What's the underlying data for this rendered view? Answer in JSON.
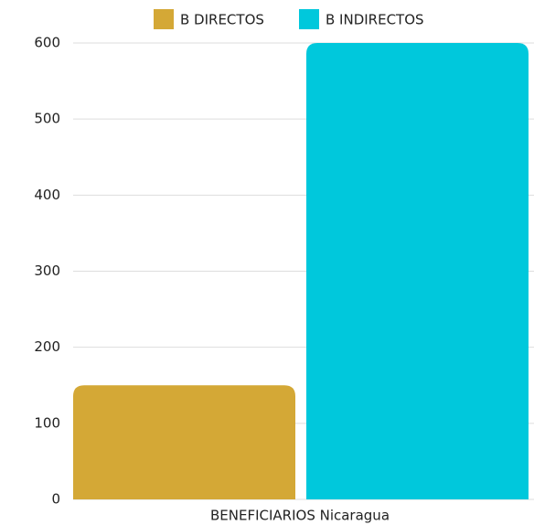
{
  "chart_data": {
    "type": "bar",
    "categories": [
      "BENEFICIARIOS Nicaragua"
    ],
    "series": [
      {
        "name": "B DIRECTOS",
        "color": "#d4a836",
        "values": [
          150
        ]
      },
      {
        "name": "B INDIRECTOS",
        "color": "#00c8dc",
        "values": [
          600
        ]
      }
    ],
    "ylim": [
      0,
      600
    ],
    "yticks": [
      0,
      100,
      200,
      300,
      400,
      500,
      600
    ],
    "grid": true,
    "legend": "top"
  }
}
